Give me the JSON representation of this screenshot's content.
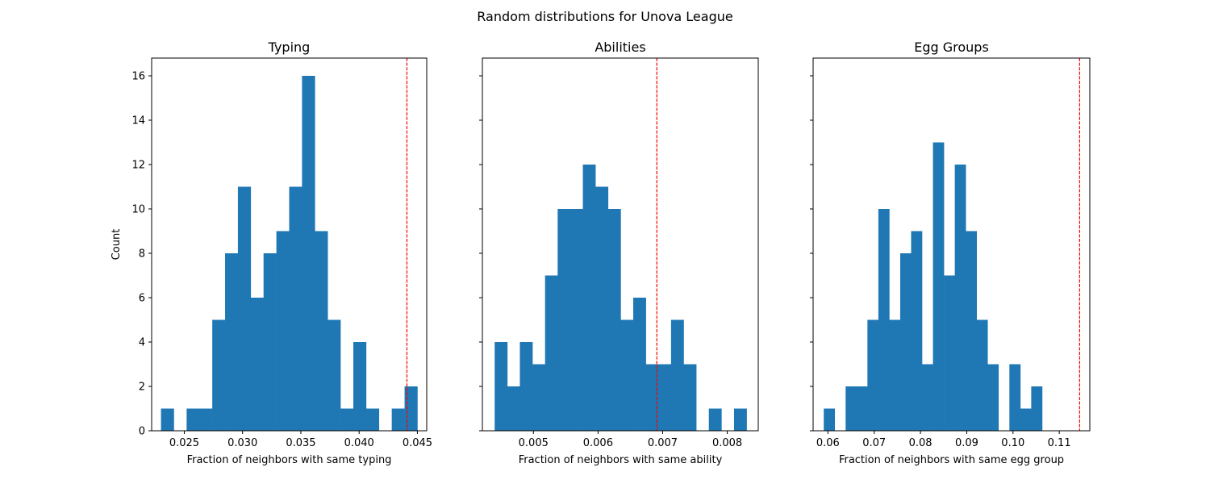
{
  "figure": {
    "suptitle": "Random distributions for Unova League"
  },
  "colors": {
    "bar": "#1f77b4",
    "reference_line": "#ff0000",
    "axes": "#000000"
  },
  "chart_data": [
    {
      "type": "bar",
      "title": "Typing",
      "xlabel": "Fraction of neighbors with same typing",
      "ylabel": "Count",
      "xlim": [
        0.0222,
        0.0458
      ],
      "ylim": [
        0,
        16.8
      ],
      "xticks": [
        0.025,
        0.03,
        0.035,
        0.04,
        0.045
      ],
      "xtick_labels": [
        "0.025",
        "0.030",
        "0.035",
        "0.040",
        "0.045"
      ],
      "yticks": [
        0,
        2,
        4,
        6,
        8,
        10,
        12,
        14,
        16
      ],
      "ytick_labels": [
        "0",
        "2",
        "4",
        "6",
        "8",
        "10",
        "12",
        "14",
        "16"
      ],
      "bin_start": 0.023,
      "bin_width": 0.0011,
      "counts": [
        1,
        0,
        1,
        1,
        5,
        8,
        11,
        6,
        8,
        9,
        11,
        16,
        9,
        5,
        1,
        4,
        1,
        0,
        1,
        2
      ],
      "reference_line_x": 0.0441
    },
    {
      "type": "bar",
      "title": "Abilities",
      "xlabel": "Fraction of neighbors with same ability",
      "ylabel": "",
      "xlim": [
        0.00421,
        0.00848
      ],
      "ylim": [
        0,
        16.8
      ],
      "xticks": [
        0.005,
        0.006,
        0.007,
        0.008
      ],
      "xtick_labels": [
        "0.005",
        "0.006",
        "0.007",
        "0.008"
      ],
      "yticks": [
        0,
        2,
        4,
        6,
        8,
        10,
        12,
        14,
        16
      ],
      "ytick_labels": [
        "",
        "",
        "",
        "",
        "",
        "",
        "",
        "",
        ""
      ],
      "bin_start": 0.0044,
      "bin_width": 0.000195,
      "counts": [
        4,
        2,
        4,
        3,
        7,
        10,
        10,
        12,
        11,
        10,
        5,
        6,
        3,
        3,
        5,
        3,
        0,
        1,
        0,
        1
      ],
      "reference_line_x": 0.00691
    },
    {
      "type": "bar",
      "title": "Egg Groups",
      "xlabel": "Fraction of neighbors with same egg group",
      "ylabel": "",
      "xlim": [
        0.0568,
        0.1166
      ],
      "ylim": [
        0,
        16.8
      ],
      "xticks": [
        0.06,
        0.07,
        0.08,
        0.09,
        0.1,
        0.11
      ],
      "xtick_labels": [
        "0.06",
        "0.07",
        "0.08",
        "0.09",
        "0.10",
        "0.11"
      ],
      "yticks": [
        0,
        2,
        4,
        6,
        8,
        10,
        12,
        14,
        16
      ],
      "ytick_labels": [
        "",
        "",
        "",
        "",
        "",
        "",
        "",
        "",
        ""
      ],
      "bin_start": 0.0591,
      "bin_width": 0.00236,
      "counts": [
        1,
        0,
        2,
        2,
        5,
        10,
        5,
        8,
        9,
        3,
        13,
        7,
        12,
        9,
        5,
        3,
        0,
        3,
        1,
        2
      ],
      "reference_line_x": 0.1144
    }
  ]
}
